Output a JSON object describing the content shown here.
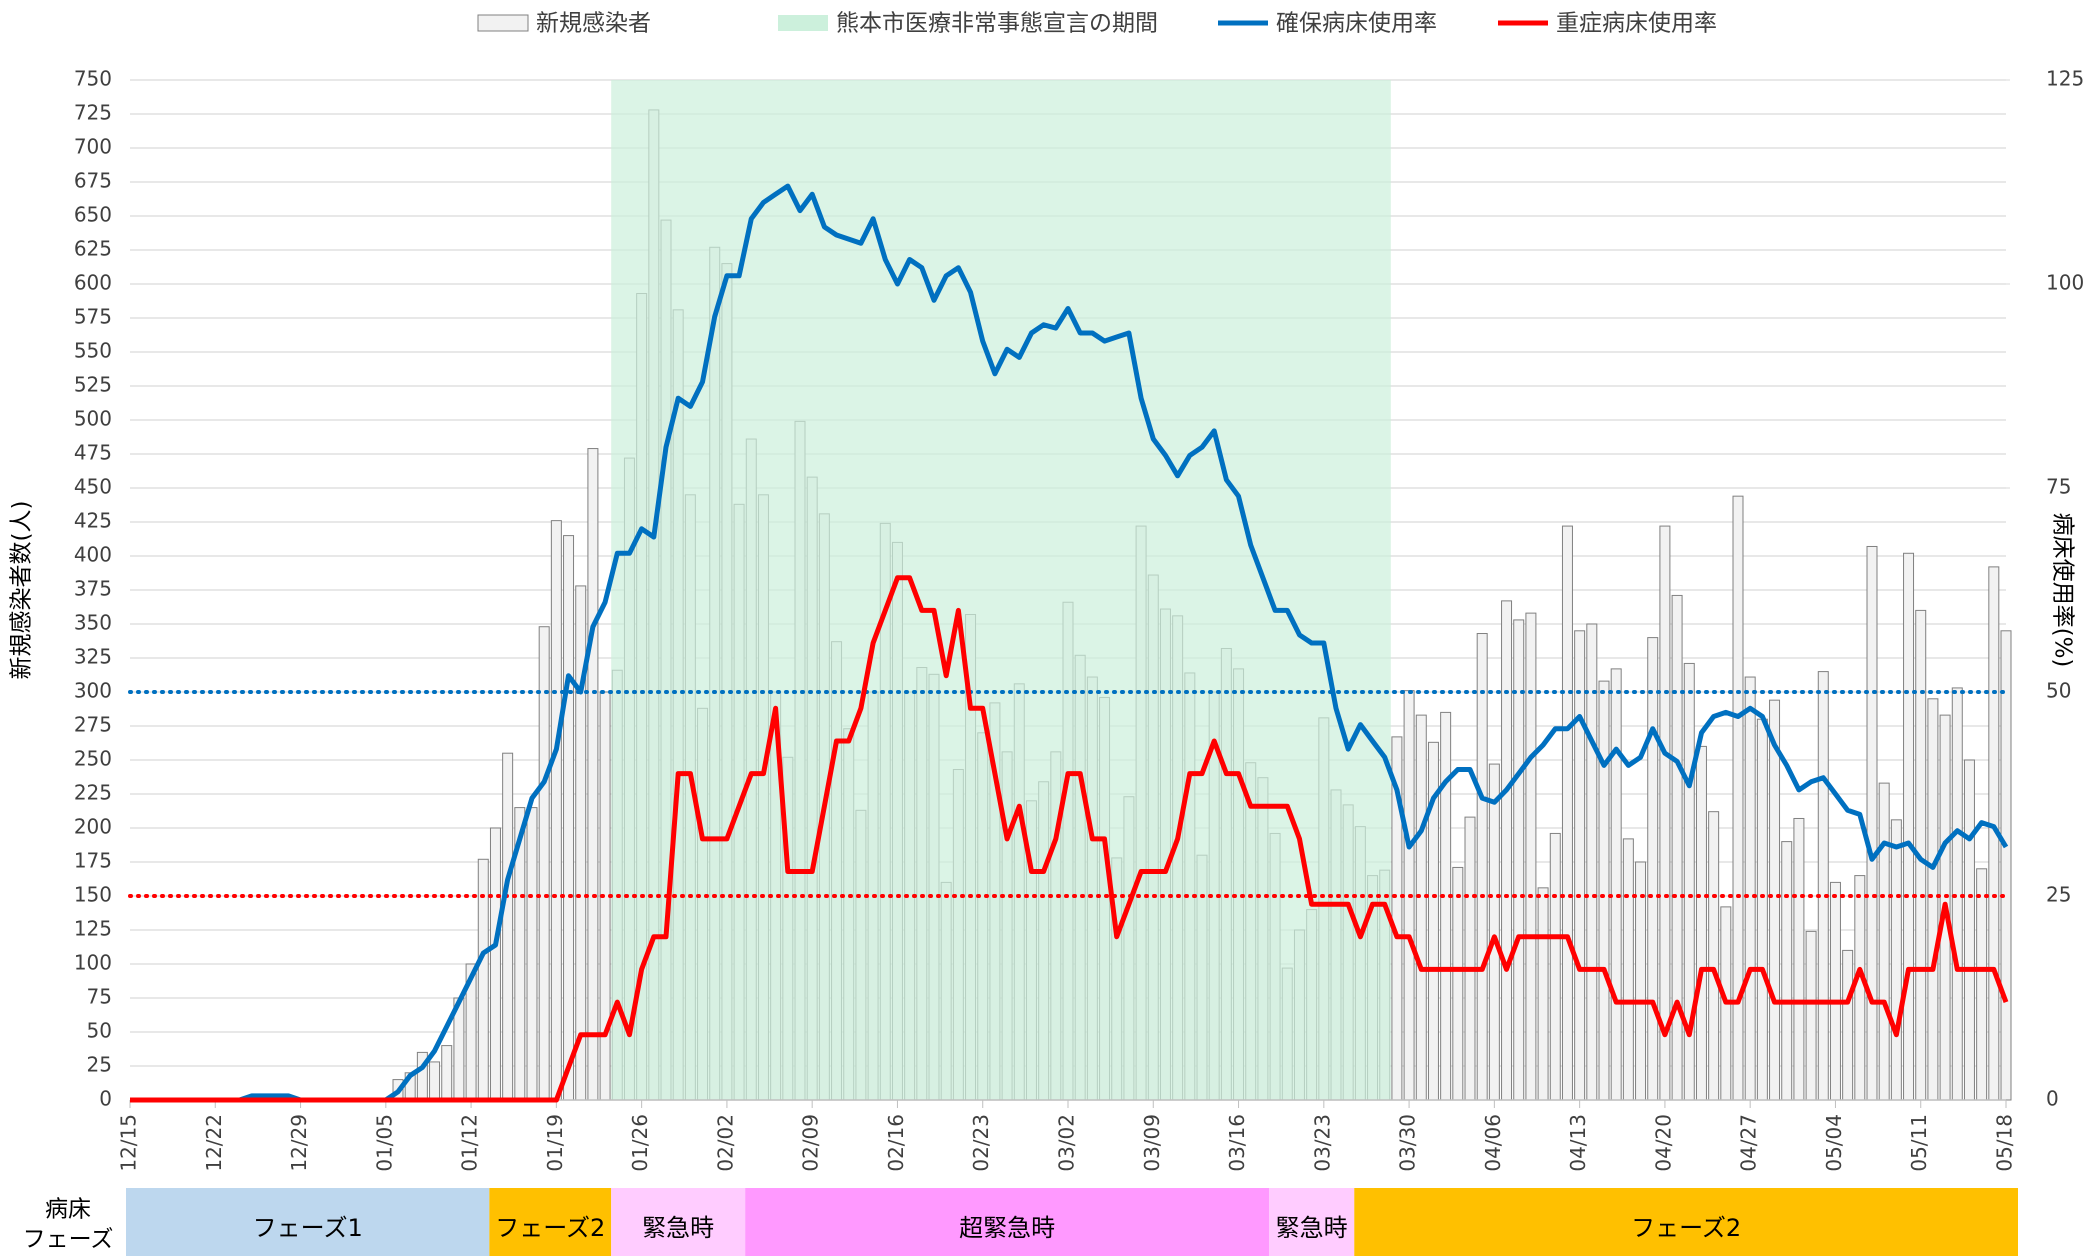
{
  "chart_data": {
    "type": "bar_line",
    "y_label": "新規感染者数(人)",
    "y2_label": "病床使用率(%)",
    "categories": [
      "12/15",
      null,
      null,
      null,
      null,
      null,
      null,
      "12/22",
      null,
      null,
      null,
      null,
      null,
      null,
      "12/29",
      null,
      null,
      null,
      null,
      null,
      null,
      "01/05",
      null,
      null,
      null,
      null,
      null,
      null,
      "01/12",
      null,
      null,
      null,
      null,
      null,
      null,
      "01/19",
      null,
      null,
      null,
      null,
      null,
      null,
      "01/26",
      null,
      null,
      null,
      null,
      null,
      null,
      "02/02",
      null,
      null,
      null,
      null,
      null,
      null,
      "02/09",
      null,
      null,
      null,
      null,
      null,
      null,
      "02/16",
      null,
      null,
      null,
      null,
      null,
      null,
      "02/23",
      null,
      null,
      null,
      null,
      null,
      null,
      "03/02",
      null,
      null,
      null,
      null,
      null,
      null,
      "03/09",
      null,
      null,
      null,
      null,
      null,
      null,
      "03/16",
      null,
      null,
      null,
      null,
      null,
      null,
      "03/23",
      null,
      null,
      null,
      null,
      null,
      null,
      "03/30",
      null,
      null,
      null,
      null,
      null,
      null,
      "04/06",
      null,
      null,
      null,
      null,
      null,
      null,
      "04/13",
      null,
      null,
      null,
      null,
      null,
      null,
      "04/20",
      null,
      null,
      null,
      null,
      null,
      null,
      "04/27",
      null,
      null,
      null,
      null,
      null,
      null,
      "05/04",
      null,
      null,
      null,
      null,
      null,
      null,
      "05/11",
      null,
      null,
      null,
      null,
      null,
      null,
      "05/18"
    ],
    "ylim": [
      0,
      750
    ],
    "yticks": [
      0,
      25,
      50,
      75,
      100,
      125,
      150,
      175,
      200,
      225,
      250,
      275,
      300,
      325,
      350,
      375,
      400,
      425,
      450,
      475,
      500,
      525,
      550,
      575,
      600,
      625,
      650,
      675,
      700,
      725,
      750
    ],
    "y2lim": [
      0,
      125
    ],
    "y2ticks": [
      0,
      25,
      50,
      75,
      100,
      125
    ],
    "grid": true,
    "series": [
      {
        "name": "新規感染者",
        "type": "bar",
        "color": "#f2f2f2",
        "edge": "#808080",
        "values": [
          0,
          0,
          0,
          0,
          0,
          0,
          0,
          0,
          0,
          0,
          0,
          0,
          0,
          0,
          0,
          0,
          0,
          0,
          0,
          0,
          0,
          0,
          15,
          20,
          35,
          28,
          40,
          75,
          100,
          177,
          200,
          255,
          215,
          215,
          348,
          426,
          415,
          378,
          479,
          300,
          316,
          472,
          593,
          728,
          647,
          581,
          445,
          288,
          627,
          615,
          438,
          486,
          445,
          300,
          252,
          499,
          458,
          431,
          337,
          273,
          213,
          300,
          424,
          410,
          300,
          318,
          313,
          160,
          243,
          357,
          270,
          292,
          256,
          306,
          220,
          234,
          256,
          366,
          327,
          311,
          296,
          178,
          223,
          422,
          386,
          361,
          356,
          314,
          180,
          300,
          332,
          317,
          248,
          237,
          196,
          97,
          125,
          140,
          281,
          228,
          217,
          201,
          165,
          169,
          267,
          301,
          283,
          263,
          285,
          171,
          208,
          343,
          247,
          367,
          353,
          358,
          156,
          196,
          422,
          345,
          350,
          308,
          317,
          192,
          175,
          340,
          422,
          371,
          321,
          260,
          212,
          142,
          444,
          311,
          280,
          294,
          190,
          207,
          124,
          315,
          160,
          110,
          165,
          407,
          233,
          206,
          402,
          360,
          295,
          283,
          303,
          250,
          170,
          392,
          345
        ]
      },
      {
        "name": "確保病床使用率",
        "type": "line",
        "axis": "y2",
        "color": "#0070c0",
        "values": [
          0,
          0,
          0,
          0,
          0,
          0,
          0,
          0,
          0,
          0,
          0.5,
          0.5,
          0.5,
          0.5,
          0,
          0,
          0,
          0,
          0,
          0,
          0,
          0,
          1,
          3,
          4,
          6,
          9,
          12,
          15,
          18,
          19,
          27,
          32,
          37,
          39,
          43,
          52,
          50,
          58,
          61,
          67,
          67,
          70,
          69,
          80,
          86,
          85,
          88,
          96,
          101,
          101,
          108,
          110,
          111,
          112,
          109,
          111,
          107,
          106,
          105.5,
          105,
          108,
          103,
          100,
          103,
          102,
          98,
          101,
          102,
          99,
          93,
          89,
          92,
          91,
          94,
          95,
          94.6,
          97,
          94,
          94,
          93,
          93.5,
          94,
          86,
          81,
          79,
          76.5,
          79,
          80,
          82,
          76,
          74,
          68,
          64,
          60,
          60,
          57,
          56,
          56,
          48,
          43,
          46,
          44,
          42,
          38,
          31,
          33,
          37,
          39,
          40.5,
          40.5,
          37,
          36.5,
          38,
          40,
          42,
          43.5,
          45.5,
          45.5,
          47,
          44,
          41,
          43,
          41,
          42,
          45.5,
          42.5,
          41.5,
          38.5,
          45,
          47,
          47.5,
          47,
          48,
          47,
          43.5,
          41,
          38,
          39,
          39.5,
          37.5,
          35.5,
          35,
          29.5,
          31.5,
          31,
          31.5,
          29.5,
          28.5,
          31.5,
          33,
          32,
          34,
          33.5,
          31
        ]
      },
      {
        "name": "重症病床使用率",
        "type": "line",
        "axis": "y2",
        "color": "#ff0000",
        "values": [
          0,
          0,
          0,
          0,
          0,
          0,
          0,
          0,
          0,
          0,
          0,
          0,
          0,
          0,
          0,
          0,
          0,
          0,
          0,
          0,
          0,
          0,
          0,
          0,
          0,
          0,
          0,
          0,
          0,
          0,
          0,
          0,
          0,
          0,
          0,
          0,
          4,
          8,
          8,
          8,
          12,
          8,
          16,
          20,
          20,
          40,
          40,
          32,
          32,
          32,
          36,
          40,
          40,
          48,
          28,
          28,
          28,
          36,
          44,
          44,
          48,
          56,
          60,
          64,
          64,
          60,
          60,
          52,
          60,
          48,
          48,
          40,
          32,
          36,
          28,
          28,
          32,
          40,
          40,
          32,
          32,
          20,
          24,
          28,
          28,
          28,
          32,
          40,
          40,
          44,
          40,
          40,
          36,
          36,
          36,
          36,
          32,
          24,
          24,
          24,
          24,
          20,
          24,
          24,
          20,
          20,
          16,
          16,
          16,
          16,
          16,
          16,
          20,
          16,
          20,
          20,
          20,
          20,
          20,
          16,
          16,
          16,
          12,
          12,
          12,
          12,
          8,
          12,
          8,
          16,
          16,
          12,
          12,
          16,
          16,
          12,
          12,
          12,
          12,
          12,
          12,
          12,
          16,
          12,
          12,
          8,
          16,
          16,
          16,
          24,
          16,
          16,
          16,
          16,
          12
        ]
      }
    ],
    "reference_lines": [
      {
        "value": 50,
        "axis": "y2",
        "color": "#0070c0"
      },
      {
        "value": 25,
        "axis": "y2",
        "color": "#ff0000"
      }
    ],
    "highlight": {
      "name": "熊本市医療非常事態宣言の期間",
      "color": "#ccf0dc",
      "start": 39.5,
      "end": 103.5
    },
    "phases": {
      "label": [
        "病床",
        "フェーズ"
      ],
      "segments": [
        {
          "label": "フェーズ1",
          "color": "#bdd7ee",
          "start": -0.5,
          "end": 29.5
        },
        {
          "label": "フェーズ2",
          "color": "#ffc000",
          "start": 29.5,
          "end": 39.5
        },
        {
          "label": "緊急時",
          "color": "#ffccff",
          "start": 39.5,
          "end": 50.5
        },
        {
          "label": "超緊急時",
          "color": "#ff99ff",
          "start": 50.5,
          "end": 93.5
        },
        {
          "label": "緊急時",
          "color": "#ffccff",
          "start": 93.5,
          "end": 100.5
        },
        {
          "label": "フェーズ2",
          "color": "#ffc000",
          "start": 100.5,
          "end": 155.5
        }
      ]
    }
  }
}
